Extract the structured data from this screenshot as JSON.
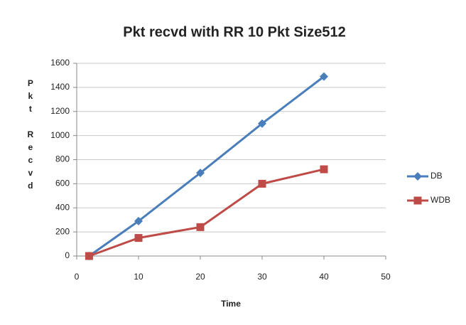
{
  "chart_data": {
    "type": "line",
    "title": "Pkt recvd with RR 10 Pkt Size512",
    "x_label": "Time",
    "y_label": "Pkt Recvd",
    "x": [
      2,
      10,
      20,
      30,
      40
    ],
    "series": [
      {
        "name": "DB",
        "color": "#4a7ebb",
        "marker": "diamond",
        "values": [
          0,
          290,
          690,
          1100,
          1490
        ]
      },
      {
        "name": "WDB",
        "color": "#be4b48",
        "marker": "square",
        "values": [
          0,
          150,
          240,
          600,
          720
        ]
      }
    ],
    "xlim": [
      0,
      50
    ],
    "xticks": [
      0,
      10,
      20,
      30,
      40,
      50
    ],
    "ylim": [
      0,
      1600
    ],
    "yticks": [
      0,
      200,
      400,
      600,
      800,
      1000,
      1200,
      1400,
      1600
    ],
    "grid": true,
    "legend": "right"
  }
}
